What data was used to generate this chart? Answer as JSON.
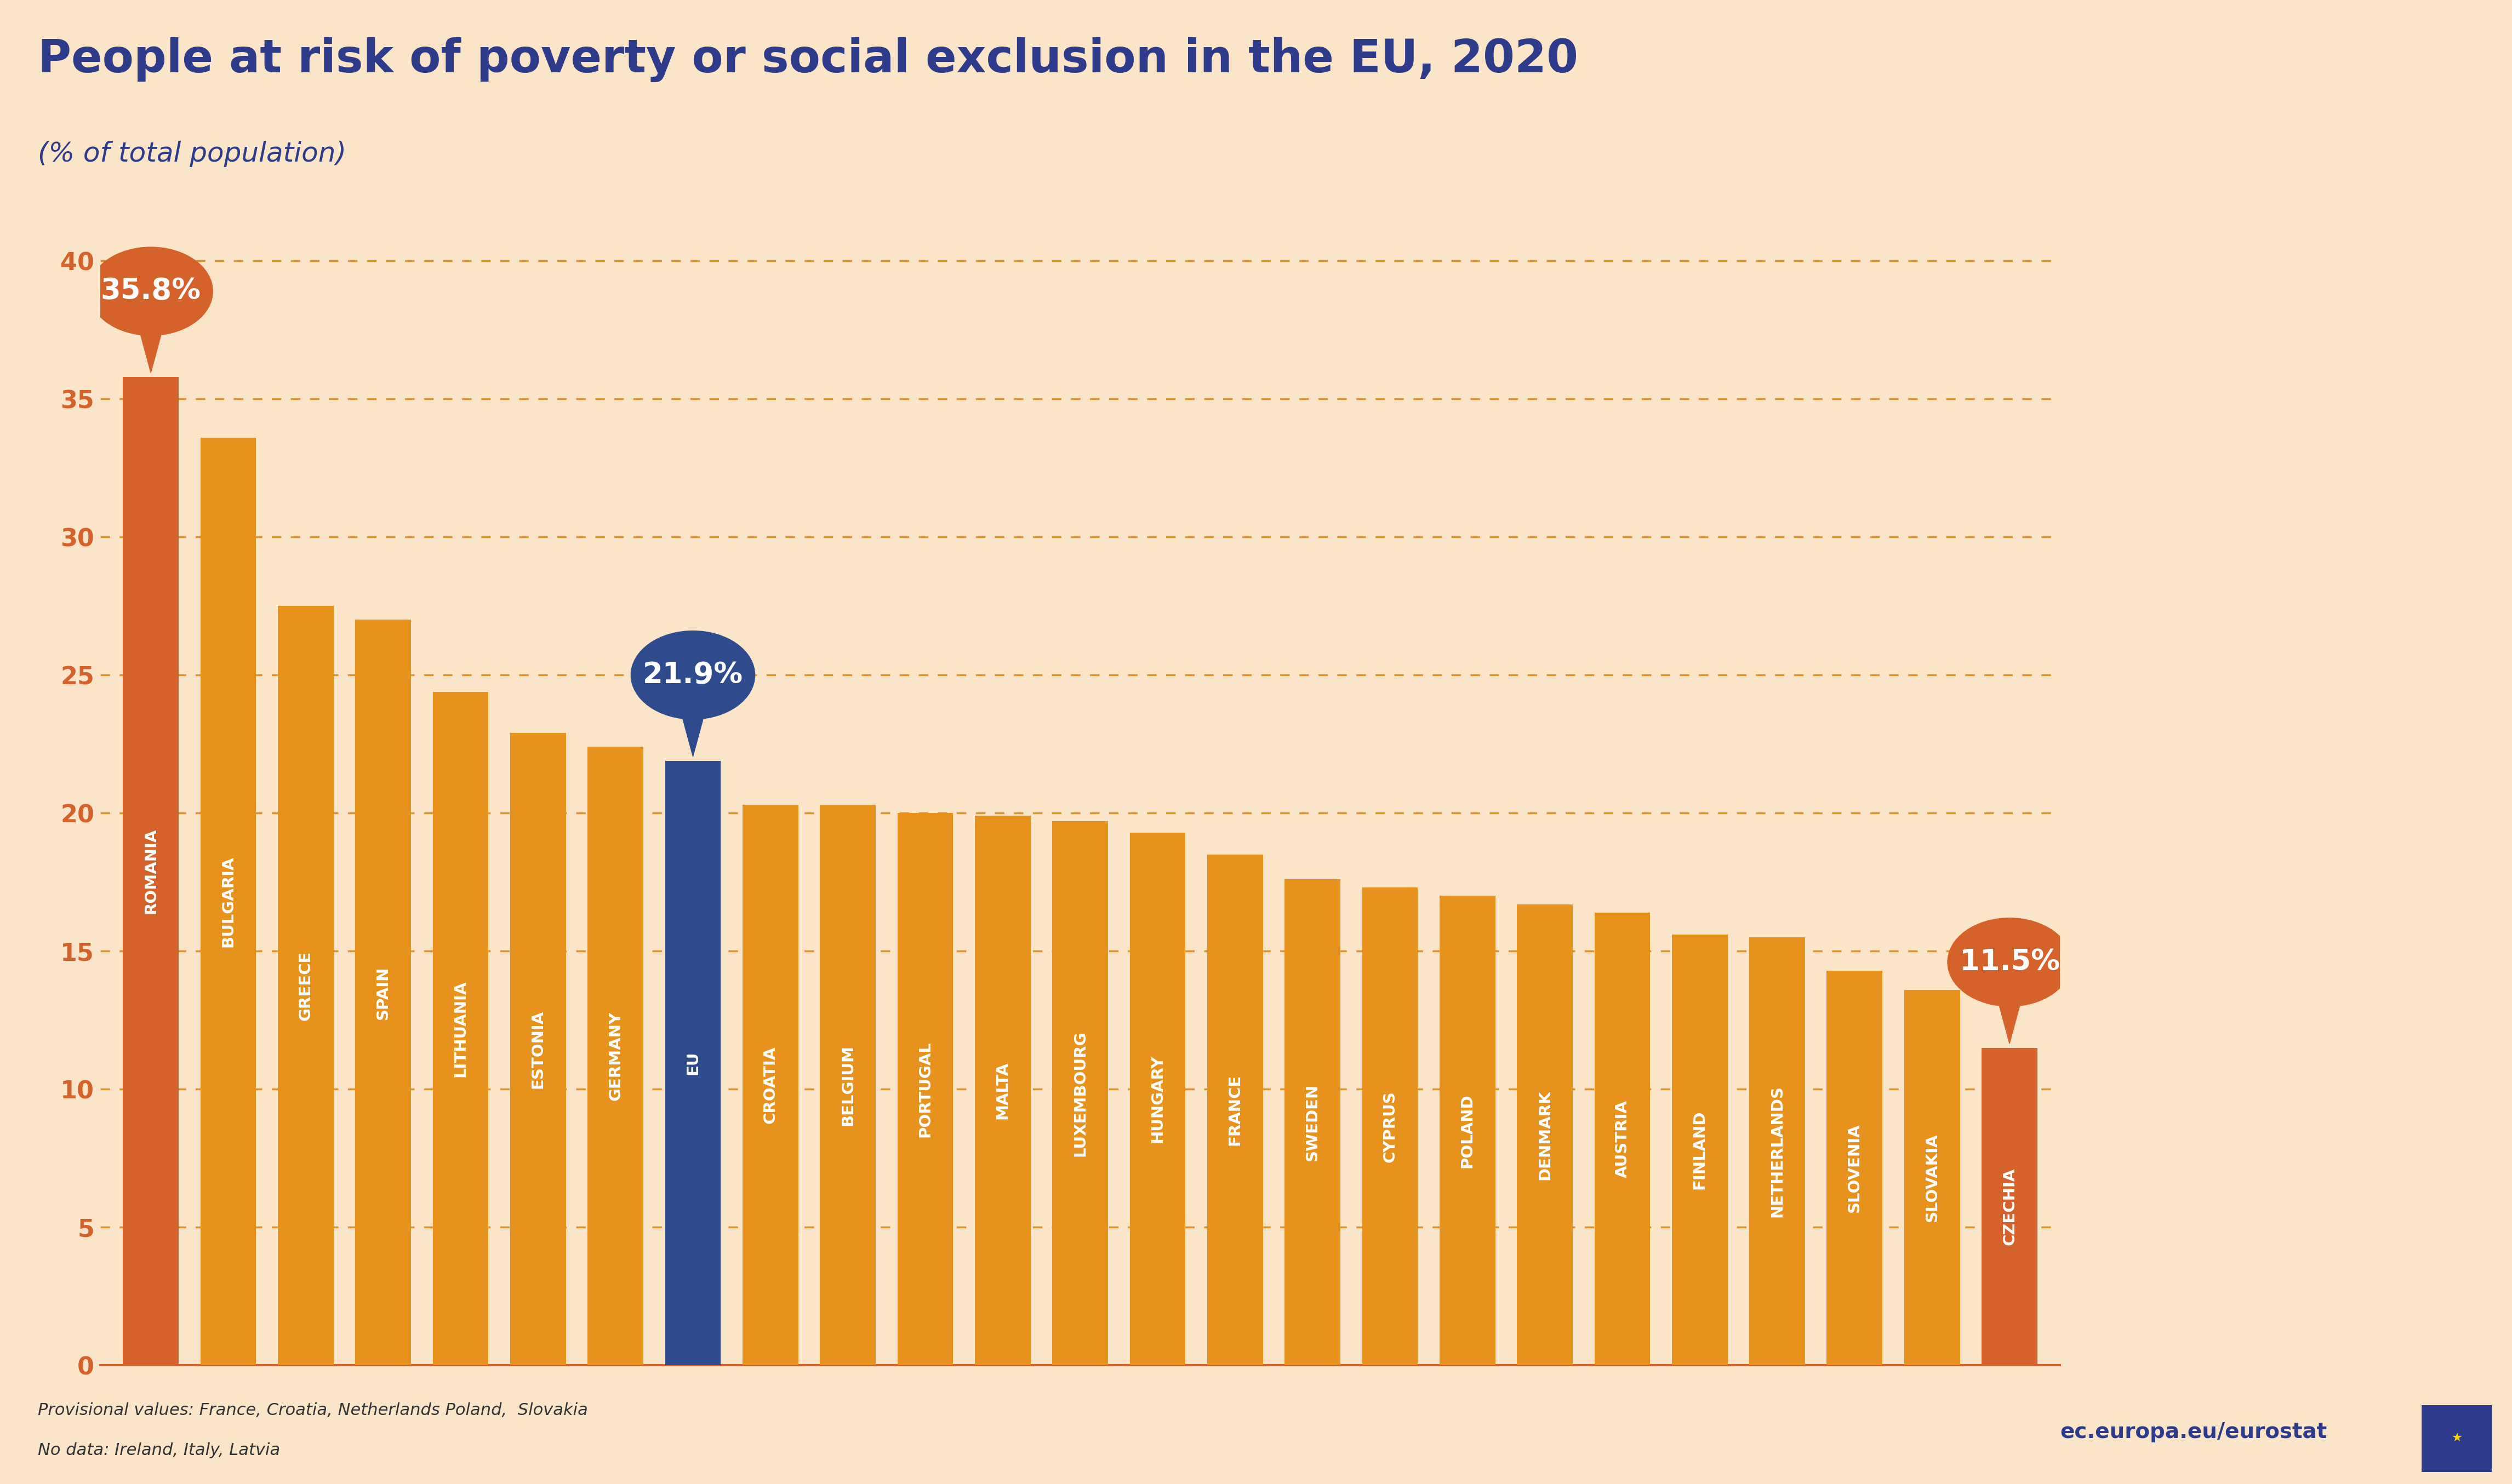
{
  "title": "People at risk of poverty or social exclusion in the EU, 2020",
  "subtitle": "(% of total population)",
  "categories": [
    "ROMANIA",
    "BULGARIA",
    "GREECE",
    "SPAIN",
    "LITHUANIA",
    "ESTONIA",
    "GERMANY",
    "EU",
    "CROATIA",
    "BELGIUM",
    "PORTUGAL",
    "MALTA",
    "LUXEMBOURG",
    "HUNGARY",
    "FRANCE",
    "SWEDEN",
    "CYPRUS",
    "POLAND",
    "DENMARK",
    "AUSTRIA",
    "FINLAND",
    "NETHERLANDS",
    "SLOVENIA",
    "SLOVAKIA",
    "CZECHIA"
  ],
  "values": [
    35.8,
    33.6,
    27.5,
    27.0,
    24.4,
    22.9,
    22.4,
    21.9,
    20.3,
    20.3,
    20.0,
    19.9,
    19.7,
    19.3,
    18.5,
    17.6,
    17.3,
    17.0,
    16.7,
    16.4,
    15.6,
    15.5,
    14.3,
    13.6,
    11.5
  ],
  "bar_colors": [
    "#D4622A",
    "#E8921E",
    "#E8921E",
    "#E8921E",
    "#E8921E",
    "#E8921E",
    "#E8921E",
    "#2E4B8E",
    "#E8921E",
    "#E8921E",
    "#E8921E",
    "#E8921E",
    "#E8921E",
    "#E8921E",
    "#E8921E",
    "#E8921E",
    "#E8921E",
    "#E8921E",
    "#E8921E",
    "#E8921E",
    "#E8921E",
    "#E8921E",
    "#E8921E",
    "#E8921E",
    "#D4622A"
  ],
  "background_color": "#FAE5C8",
  "grid_color": "#E8921E",
  "axis_color": "#D4622A",
  "title_color": "#2E3B8A",
  "subtitle_color": "#2E3B8A",
  "ytick_color": "#D4622A",
  "footnote1": "Provisional values: France, Croatia, Netherlands Poland,  Slovakia",
  "footnote2": "No data: Ireland, Italy, Latvia",
  "watermark": "ec.europa.eu/eurostat",
  "bubbles": [
    {
      "bar_index": 0,
      "label": "35.8%",
      "color": "#D4622A",
      "text_color": "white"
    },
    {
      "bar_index": 7,
      "label": "21.9%",
      "color": "#2E4B8E",
      "text_color": "white"
    },
    {
      "bar_index": 24,
      "label": "11.5%",
      "color": "#D4622A",
      "text_color": "white"
    }
  ],
  "ylim": [
    0,
    43
  ],
  "yticks": [
    0,
    5,
    10,
    15,
    20,
    25,
    30,
    35,
    40
  ]
}
